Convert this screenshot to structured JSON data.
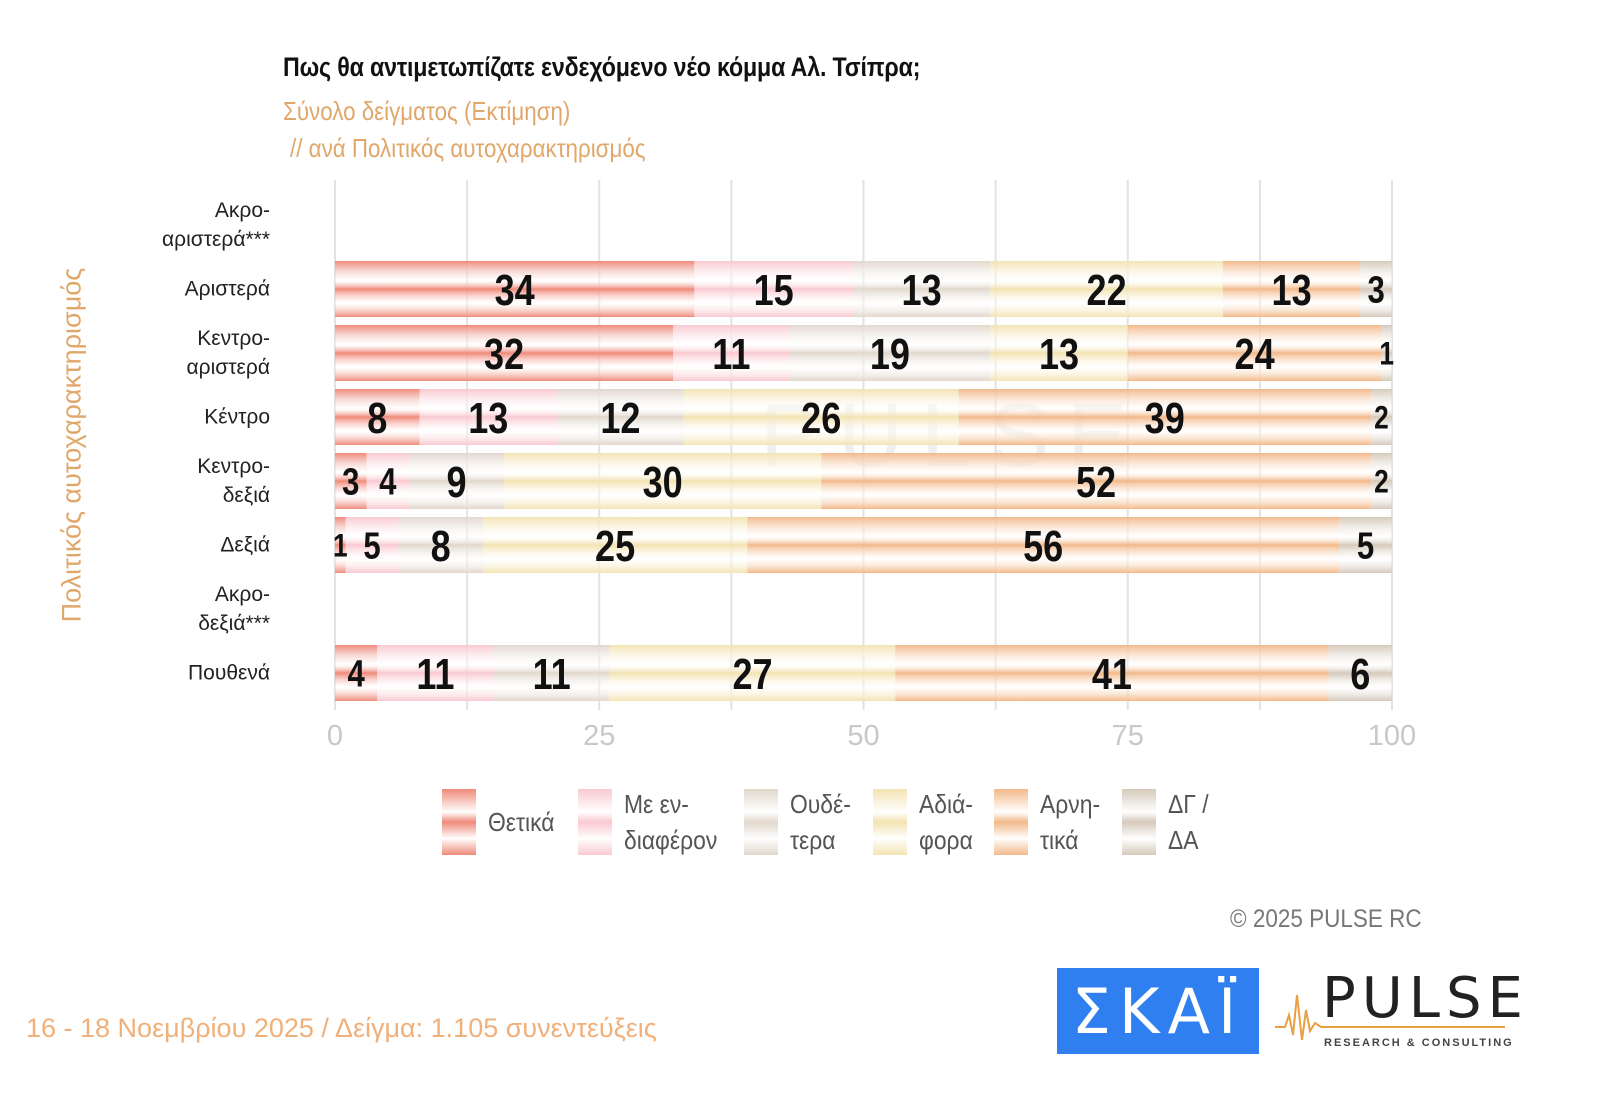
{
  "header": {
    "title": "Πως θα αντιμετωπίζατε ενδεχόμενο νέο κόμμα Αλ. Τσίπρα;",
    "subtitle_line1": "Σύνολο δείγματος   (Εκτίμηση)",
    "subtitle_line2": "// ανά Πολιτικός αυτοχαρακτηρισμός"
  },
  "chart_data": {
    "type": "bar",
    "orientation": "horizontal",
    "stacked": true,
    "title": "Πως θα αντιμετωπίζατε ενδεχόμενο νέο κόμμα Αλ. Τσίπρα;",
    "subtitle": "Σύνολο δείγματος (Εκτίμηση) // ανά Πολιτικός αυτοχαρακτηρισμός",
    "ylabel": "Πολιτικός αυτοχαρακτηρισμός",
    "xlabel": "",
    "xlim": [
      0,
      100
    ],
    "xticks": [
      0,
      25,
      50,
      75,
      100
    ],
    "grid": true,
    "legend_position": "bottom",
    "categories": [
      "Ακρο-\nαριστερά***",
      "Αριστερά",
      "Κεντρο-\nαριστερά",
      "Κέντρο",
      "Κεντρο-\nδεξιά",
      "Δεξιά",
      "Ακρο-\nδεξιά***",
      "Πουθενά"
    ],
    "series": [
      {
        "name": "Θετικά",
        "legend_label": "Θετικά",
        "color": "#ef8a7a",
        "values": [
          null,
          34,
          32,
          8,
          3,
          1,
          null,
          4
        ]
      },
      {
        "name": "Με ενδιαφέρον",
        "legend_label": "Με εν-\nδιαφέρον",
        "color": "#f9c9d0",
        "values": [
          null,
          15,
          11,
          13,
          4,
          5,
          null,
          11
        ]
      },
      {
        "name": "Ουδέτερα",
        "legend_label": "Ουδέ-\nτερα",
        "color": "#e2d8cd",
        "values": [
          null,
          13,
          19,
          12,
          9,
          8,
          null,
          11
        ]
      },
      {
        "name": "Αδιάφορα",
        "legend_label": "Αδιά-\nφορα",
        "color": "#f3e3b3",
        "values": [
          null,
          22,
          13,
          26,
          30,
          25,
          null,
          27
        ]
      },
      {
        "name": "Αρνητικά",
        "legend_label": "Αρνη-\nτικά",
        "color": "#f2b98a",
        "values": [
          null,
          13,
          24,
          39,
          52,
          56,
          null,
          41
        ]
      },
      {
        "name": "ΔΓ / ΔΑ",
        "legend_label": "ΔΓ /\nΔΑ",
        "color": "#d5c9bb",
        "values": [
          null,
          3,
          1,
          2,
          2,
          5,
          null,
          6
        ]
      }
    ]
  },
  "footer": {
    "copyright": "©  2025  PULSE RC",
    "fieldwork": "16 - 18 Νοεμβρίου 2025  /  Δείγμα:  1.105 συνεντεύξεις"
  },
  "logos": {
    "skai": "ΣΚΑΪ",
    "pulse": "PULSE",
    "pulse_tagline": "RESEARCH & CONSULTING",
    "skai_color": "#2f7ff0"
  }
}
